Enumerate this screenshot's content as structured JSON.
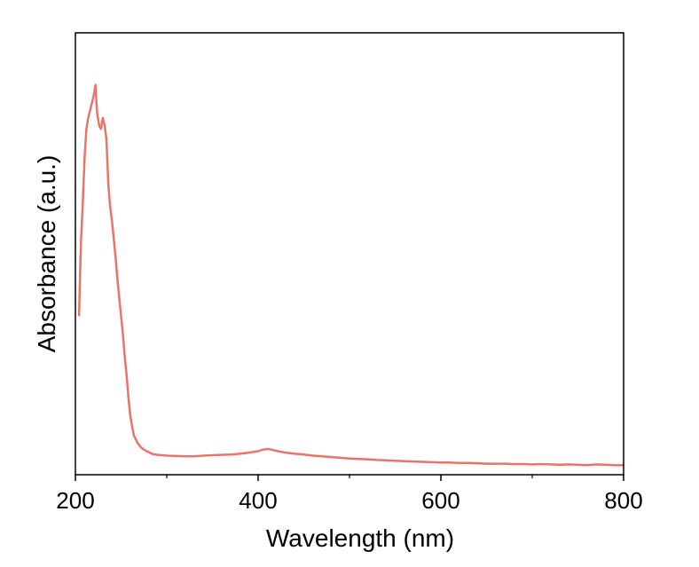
{
  "chart_data": {
    "type": "line",
    "title": "",
    "xlabel": "Wavelength (nm)",
    "ylabel": "Absorbance (a.u.)",
    "xlim": [
      200,
      800
    ],
    "ylim": [
      0,
      1.1
    ],
    "xticks": [
      200,
      400,
      600,
      800
    ],
    "xtick_labels": [
      "200",
      "400",
      "600",
      "800"
    ],
    "minor_xticks": [
      300,
      500,
      700
    ],
    "yticks_shown": false,
    "grid": false,
    "legend": null,
    "series": [
      {
        "name": "Absorbance",
        "color": "#e8746a",
        "x": [
          204,
          206,
          208,
          210,
          212,
          214,
          216,
          218,
          220,
          222,
          223,
          224,
          226,
          228,
          230,
          232,
          234,
          236,
          238,
          240,
          242,
          244,
          246,
          248,
          250,
          252,
          254,
          256,
          258,
          260,
          262,
          264,
          266,
          268,
          270,
          272,
          274,
          276,
          278,
          280,
          282,
          285,
          290,
          295,
          300,
          310,
          320,
          330,
          340,
          350,
          360,
          370,
          380,
          390,
          400,
          405,
          410,
          415,
          420,
          430,
          440,
          450,
          460,
          470,
          480,
          490,
          500,
          510,
          520,
          530,
          540,
          550,
          560,
          570,
          580,
          590,
          600,
          610,
          620,
          630,
          640,
          650,
          660,
          670,
          680,
          690,
          700,
          710,
          720,
          730,
          740,
          750,
          760,
          770,
          780,
          790,
          800
        ],
        "y": [
          0.42,
          0.62,
          0.72,
          0.85,
          0.93,
          0.96,
          0.98,
          1.0,
          1.02,
          1.05,
          1.0,
          0.97,
          0.94,
          0.93,
          0.96,
          0.94,
          0.9,
          0.78,
          0.72,
          0.68,
          0.63,
          0.58,
          0.52,
          0.47,
          0.42,
          0.37,
          0.31,
          0.26,
          0.2,
          0.15,
          0.12,
          0.095,
          0.085,
          0.075,
          0.068,
          0.062,
          0.058,
          0.055,
          0.052,
          0.05,
          0.047,
          0.044,
          0.042,
          0.041,
          0.04,
          0.039,
          0.038,
          0.038,
          0.04,
          0.041,
          0.042,
          0.043,
          0.045,
          0.048,
          0.052,
          0.056,
          0.058,
          0.056,
          0.053,
          0.048,
          0.045,
          0.043,
          0.04,
          0.038,
          0.036,
          0.034,
          0.032,
          0.031,
          0.03,
          0.028,
          0.027,
          0.026,
          0.025,
          0.024,
          0.023,
          0.022,
          0.021,
          0.021,
          0.02,
          0.02,
          0.019,
          0.018,
          0.018,
          0.018,
          0.017,
          0.017,
          0.016,
          0.017,
          0.016,
          0.015,
          0.016,
          0.015,
          0.014,
          0.016,
          0.015,
          0.014,
          0.014
        ]
      }
    ]
  }
}
